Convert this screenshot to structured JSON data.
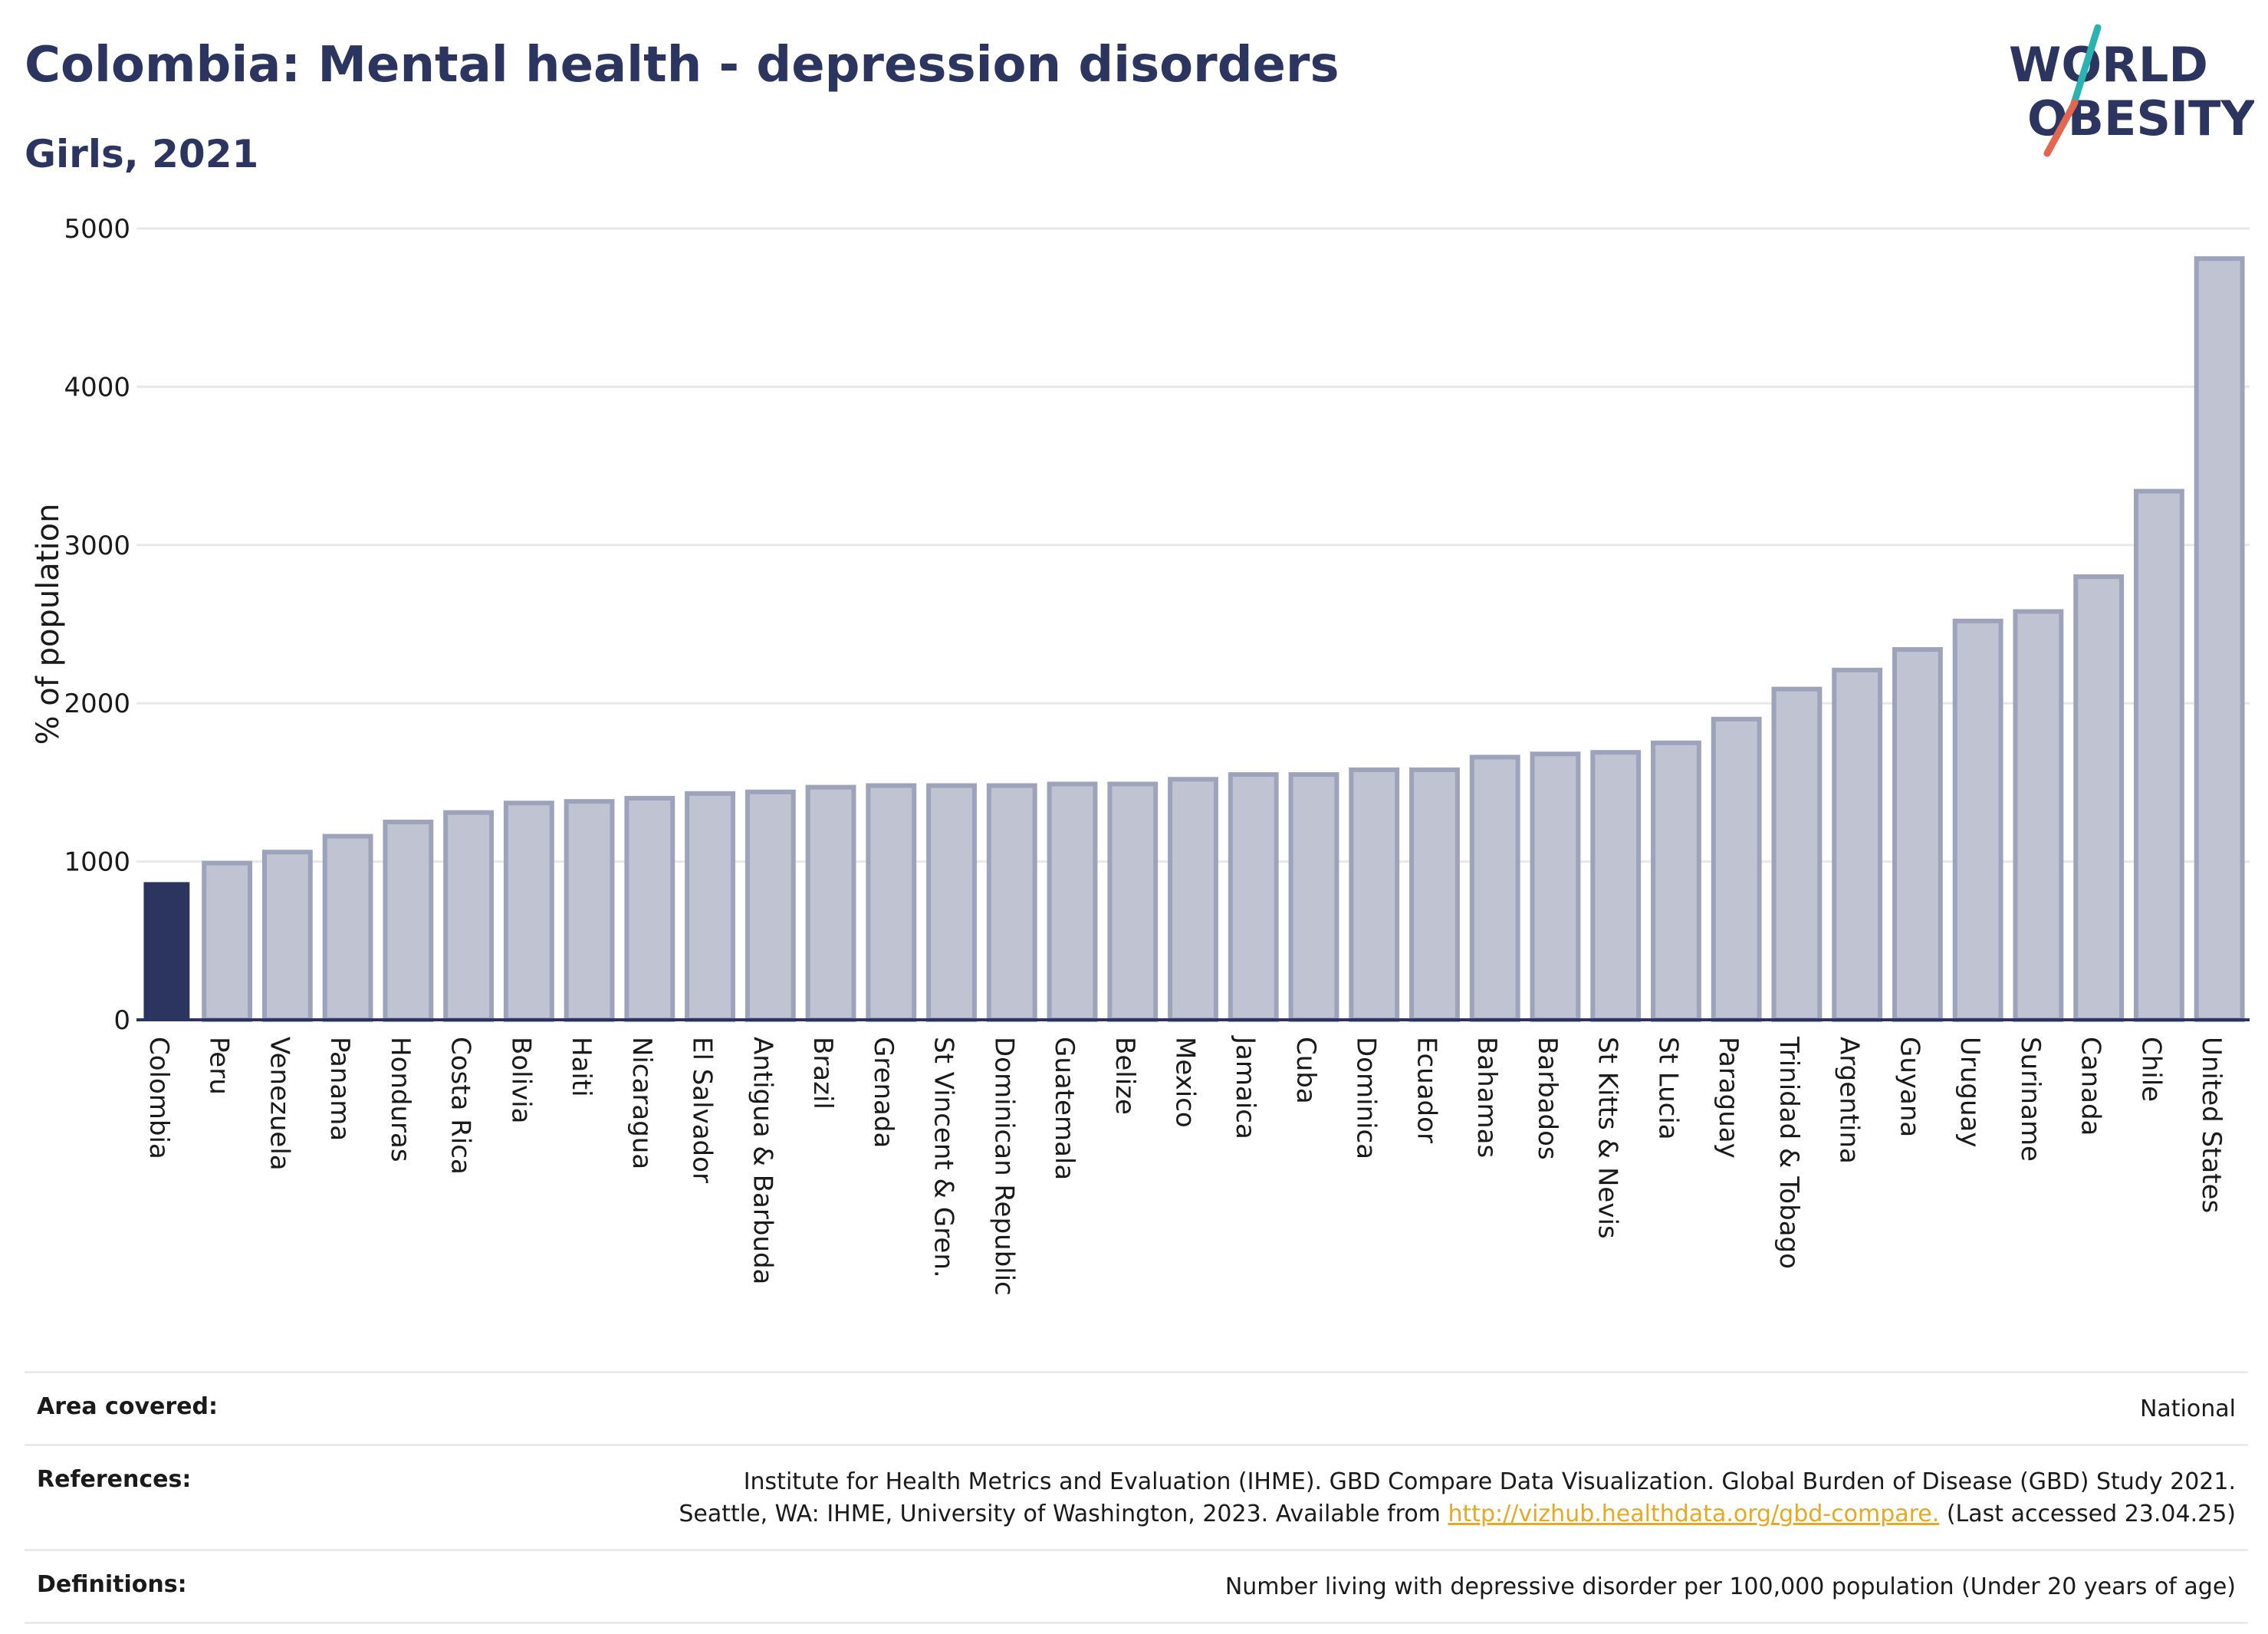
{
  "header": {
    "title": "Colombia: Mental health - depression disorders",
    "subtitle": "Girls, 2021"
  },
  "logo": {
    "line1": "WORLD",
    "line2": "OBESITY",
    "accent_colors": [
      "#2ab3b1",
      "#e4664f"
    ]
  },
  "colors": {
    "highlight": "#2b3560",
    "bar_fill": "#bfc3d2",
    "bar_stroke": "#9da3bb",
    "grid": "#e6e8ec",
    "axis": "#2b3560"
  },
  "chart_data": {
    "type": "bar",
    "title": "",
    "xlabel": "",
    "ylabel": "% of population",
    "ylim": [
      0,
      5000
    ],
    "yticks": [
      0,
      1000,
      2000,
      3000,
      4000,
      5000
    ],
    "highlight": "Colombia",
    "categories": [
      "Colombia",
      "Peru",
      "Venezuela",
      "Panama",
      "Honduras",
      "Costa Rica",
      "Bolivia",
      "Haiti",
      "Nicaragua",
      "El Salvador",
      "Antigua & Barbuda",
      "Brazil",
      "Grenada",
      "St Vincent & Gren.",
      "Dominican Republic",
      "Guatemala",
      "Belize",
      "Mexico",
      "Jamaica",
      "Cuba",
      "Dominica",
      "Ecuador",
      "Bahamas",
      "Barbados",
      "St Kitts & Nevis",
      "St Lucia",
      "Paraguay",
      "Trinidad & Tobago",
      "Argentina",
      "Guyana",
      "Uruguay",
      "Suriname",
      "Canada",
      "Chile",
      "United States"
    ],
    "values": [
      870,
      990,
      1060,
      1160,
      1250,
      1310,
      1370,
      1380,
      1400,
      1430,
      1440,
      1470,
      1480,
      1480,
      1480,
      1490,
      1490,
      1520,
      1550,
      1550,
      1580,
      1580,
      1660,
      1680,
      1690,
      1750,
      1900,
      2090,
      2210,
      2340,
      2520,
      2580,
      2800,
      3340,
      4810
    ],
    "grid": true,
    "legend": "none"
  },
  "footer": {
    "area_label": "Area covered:",
    "area_value": "National",
    "references_label": "References:",
    "references_line1": "Institute for Health Metrics and Evaluation (IHME). GBD Compare Data Visualization. Global Burden of Disease (GBD) Study 2021.",
    "references_line2_prefix": "Seattle, WA: IHME, University of Washington, 2023. Available from ",
    "references_link": "http://vizhub.healthdata.org/gbd-compare.",
    "references_line2_suffix": " (Last accessed 23.04.25)",
    "definitions_label": "Definitions:",
    "definitions_value": "Number living with depressive disorder per 100,000 population (Under 20 years of age)"
  }
}
